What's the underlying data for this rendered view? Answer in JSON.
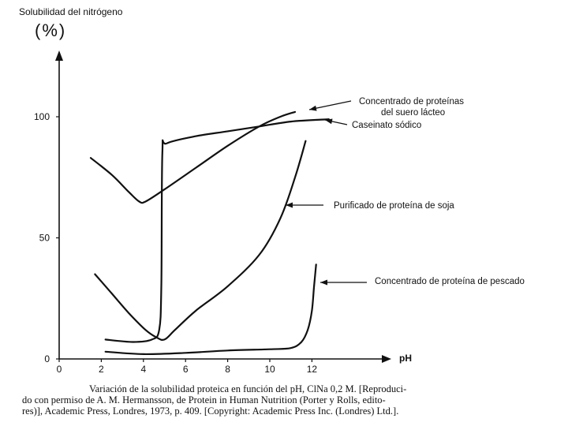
{
  "chart_data": {
    "type": "line",
    "ylabel": "Solubilidad del nitrógeno",
    "yunit": "(%)",
    "xlabel": "pH",
    "xlim": [
      0,
      12.5
    ],
    "ylim": [
      0,
      100
    ],
    "x_ticks": [
      0,
      2,
      4,
      6,
      8,
      10,
      12
    ],
    "y_ticks": [
      0,
      50,
      100
    ],
    "grid": false,
    "series": [
      {
        "name": "Concentrado de proteínas del suero lácteo",
        "x": [
          1.5,
          2.5,
          3.3,
          3.8,
          4.1,
          5.0,
          6.5,
          8.0,
          9.5,
          10.5,
          11.2
        ],
        "y": [
          83,
          76,
          69,
          65,
          65,
          70,
          79,
          88,
          96,
          100,
          102
        ]
      },
      {
        "name": "Caseinato sódico",
        "x": [
          2.2,
          3.5,
          4.4,
          4.75,
          4.85,
          4.9,
          5.1,
          6.5,
          8.0,
          9.5,
          11.0,
          12.8
        ],
        "y": [
          8,
          7,
          8,
          12,
          30,
          85,
          89,
          92,
          94,
          96,
          98,
          99
        ]
      },
      {
        "name": "Purificado de proteína de soja",
        "x": [
          1.7,
          2.5,
          3.3,
          4.1,
          4.6,
          5.0,
          5.5,
          6.5,
          8.0,
          9.5,
          10.5,
          11.2,
          11.7
        ],
        "y": [
          35,
          27,
          19,
          12,
          9,
          8,
          12,
          20,
          30,
          43,
          58,
          75,
          90
        ]
      },
      {
        "name": "Concentrado de proteína de pescado",
        "x": [
          2.2,
          4.0,
          6.0,
          8.0,
          10.0,
          11.0,
          11.5,
          11.8,
          12.0,
          12.1,
          12.2
        ],
        "y": [
          3,
          2,
          2.5,
          3.5,
          4,
          4.5,
          7,
          12,
          20,
          30,
          39
        ]
      }
    ],
    "annotations": [
      "Concentrado de proteínas",
      "del suero lácteo",
      "Caseinato sódico",
      "Purificado de proteína de soja",
      "Concentrado de proteína de pescado"
    ]
  },
  "caption": {
    "line1": "Variación de la solubilidad proteica en función del pH, ClNa 0,2 M. [Reproduci-",
    "line2": "do con permiso de A. M. Hermansson, de Protein in Human Nutrition (Porter y Rolls, edito-",
    "line3": "res)], Academic Press, Londres, 1973, p. 409. [Copyright: Academic Press Inc. (Londres) Ltd.]."
  }
}
